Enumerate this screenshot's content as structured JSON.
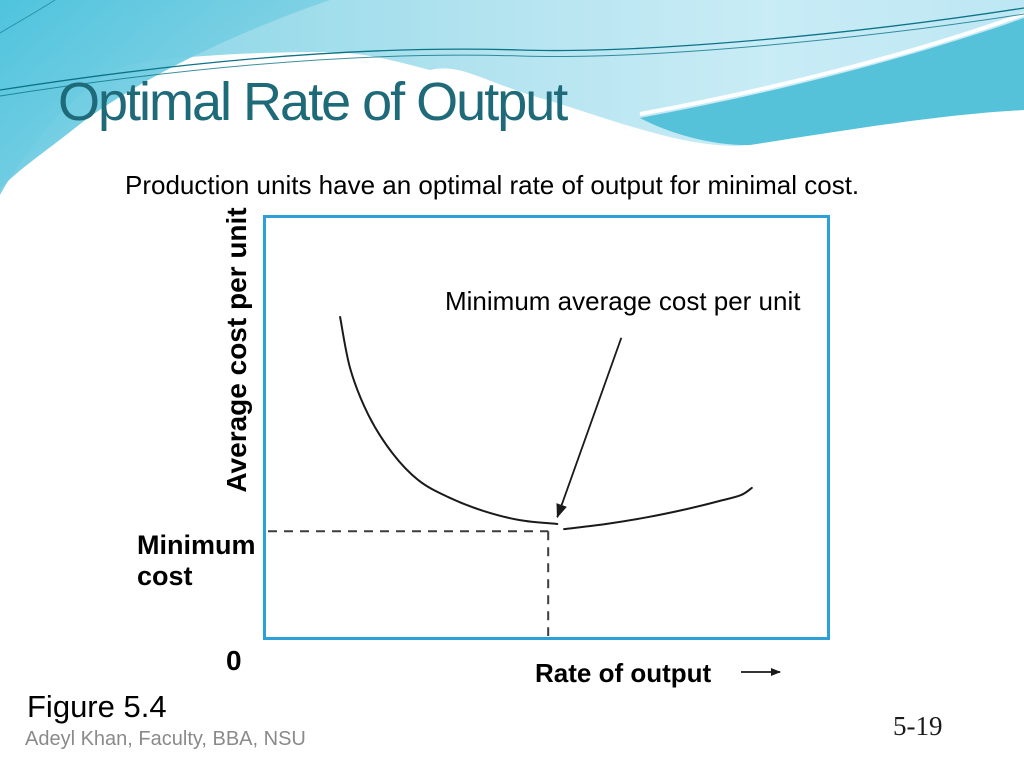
{
  "slide": {
    "title": "Optimal Rate of Output",
    "subtitle": "Production units have an optimal rate of output for minimal cost.",
    "figure_label": "Figure 5.4",
    "footer_credit": "Adeyl Khan, Faculty, BBA, NSU",
    "page_number": "5-19"
  },
  "chart_data": {
    "type": "line",
    "title": "",
    "xlabel": "Rate of output",
    "ylabel": "Average cost per unit",
    "origin_label": "0",
    "annotation_min": "Minimum average cost per unit",
    "min_cost_label": "Minimum cost",
    "axes_numeric": false,
    "x_range": [
      0,
      1
    ],
    "y_range": [
      0,
      1
    ],
    "grid": false,
    "series": [
      {
        "name": "average-cost-curve-left-branch",
        "points": [
          [
            0.136,
            0.76
          ],
          [
            0.154,
            0.638
          ],
          [
            0.186,
            0.529
          ],
          [
            0.228,
            0.44
          ],
          [
            0.274,
            0.376
          ],
          [
            0.327,
            0.336
          ],
          [
            0.388,
            0.304
          ],
          [
            0.453,
            0.282
          ],
          [
            0.519,
            0.273
          ]
        ]
      },
      {
        "name": "average-cost-curve-right-branch",
        "points": [
          [
            0.531,
            0.261
          ],
          [
            0.605,
            0.273
          ],
          [
            0.678,
            0.289
          ],
          [
            0.747,
            0.308
          ],
          [
            0.805,
            0.327
          ],
          [
            0.843,
            0.341
          ],
          [
            0.862,
            0.358
          ]
        ]
      }
    ],
    "minimum_point": {
      "x": 0.503,
      "y": 0.256
    },
    "annotation_arrow": {
      "from": [
        0.632,
        0.711
      ],
      "to": [
        0.519,
        0.289
      ]
    },
    "guides": "dashed horizontal and vertical lines from axes to the minimum point"
  },
  "colors": {
    "title_text": "#1e6a79",
    "plot_border": "#2da0d8",
    "curve_stroke": "#1a1a1a",
    "dashed_guide": "#3c3c3c",
    "footer_text": "#8a8a8a",
    "banner_teal_saturated": "#4cc3dd",
    "banner_teal_mid": "#55c2da",
    "banner_teal_light": "#c9ecf6",
    "banner_hairline": "#0c7487"
  }
}
